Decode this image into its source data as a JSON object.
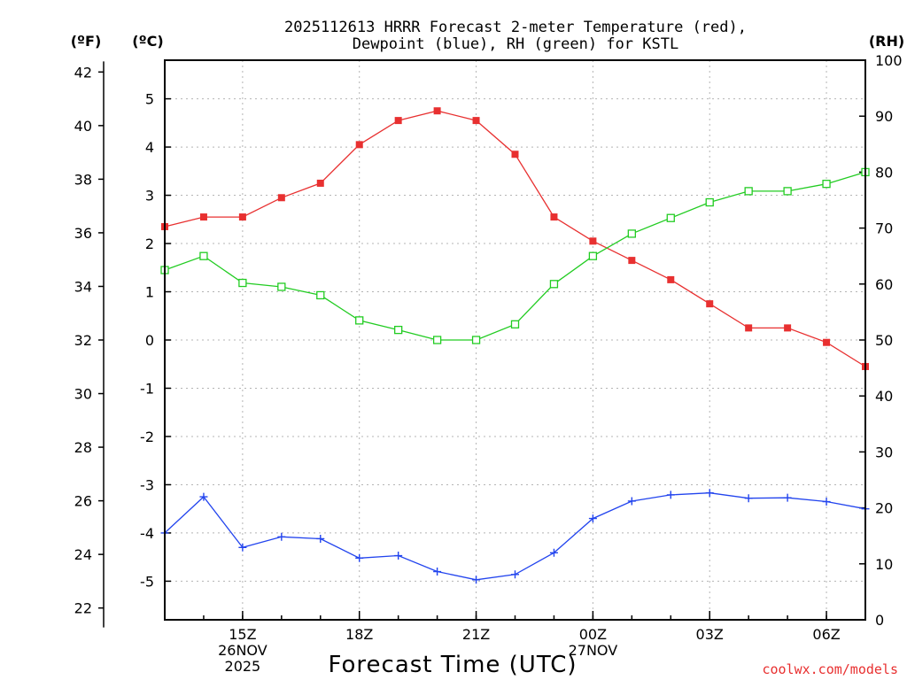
{
  "chart_data": {
    "type": "line",
    "title_line1": "2025112613 HRRR Forecast 2-meter Temperature (red),",
    "title_line2": "Dewpoint (blue), RH (green) for KSTL",
    "xlabel": "Forecast Time (UTC)",
    "credit": "coolwx.com/models",
    "units": {
      "fahrenheit": "(ºF)",
      "celsius": "(ºC)",
      "rh": "(RH)"
    },
    "x_hours": [
      13,
      14,
      15,
      16,
      17,
      18,
      19,
      20,
      21,
      22,
      23,
      24,
      25,
      26,
      27,
      28,
      29,
      30,
      31
    ],
    "x_ticks": [
      {
        "hour": 15,
        "lines": [
          "15Z",
          "26NOV",
          "2025"
        ]
      },
      {
        "hour": 18,
        "lines": [
          "18Z"
        ]
      },
      {
        "hour": 21,
        "lines": [
          "21Z"
        ]
      },
      {
        "hour": 24,
        "lines": [
          "00Z",
          "27NOV"
        ]
      },
      {
        "hour": 27,
        "lines": [
          "03Z"
        ]
      },
      {
        "hour": 30,
        "lines": [
          "06Z"
        ]
      }
    ],
    "ylim_celsius": [
      -5.8,
      5.8
    ],
    "ylim_rh": [
      0,
      100
    ],
    "yticks_fahrenheit": [
      22,
      24,
      26,
      28,
      30,
      32,
      34,
      36,
      38,
      40,
      42
    ],
    "yticks_celsius": [
      -5,
      -4,
      -3,
      -2,
      -1,
      0,
      1,
      2,
      3,
      4,
      5
    ],
    "yticks_rh": [
      0,
      10,
      20,
      30,
      40,
      50,
      60,
      70,
      80,
      90,
      100
    ],
    "grid": true,
    "series": [
      {
        "name": "Temperature",
        "axis": "celsius",
        "color": "#e83030",
        "marker": "filled-square",
        "values": [
          2.35,
          2.55,
          2.55,
          2.95,
          3.25,
          4.05,
          4.55,
          4.75,
          4.55,
          3.85,
          2.55,
          2.05,
          1.65,
          1.25,
          0.75,
          0.25,
          0.25,
          -0.05,
          -0.55
        ]
      },
      {
        "name": "Dewpoint",
        "axis": "celsius",
        "color": "#2244ee",
        "marker": "plus",
        "values": [
          -4.0,
          -3.25,
          -4.3,
          -4.08,
          -4.12,
          -4.52,
          -4.47,
          -4.8,
          -4.97,
          -4.86,
          -4.41,
          -3.7,
          -3.34,
          -3.21,
          -3.17,
          -3.28,
          -3.27,
          -3.35,
          -3.5
        ]
      },
      {
        "name": "RH",
        "axis": "rh",
        "color": "#22cc22",
        "marker": "open-square",
        "values": [
          62.5,
          65.0,
          60.2,
          59.5,
          58.0,
          53.5,
          51.8,
          50.0,
          50.0,
          52.8,
          60.0,
          65.0,
          69.0,
          71.8,
          74.6,
          76.6,
          76.6,
          77.9,
          80.0
        ]
      }
    ]
  }
}
